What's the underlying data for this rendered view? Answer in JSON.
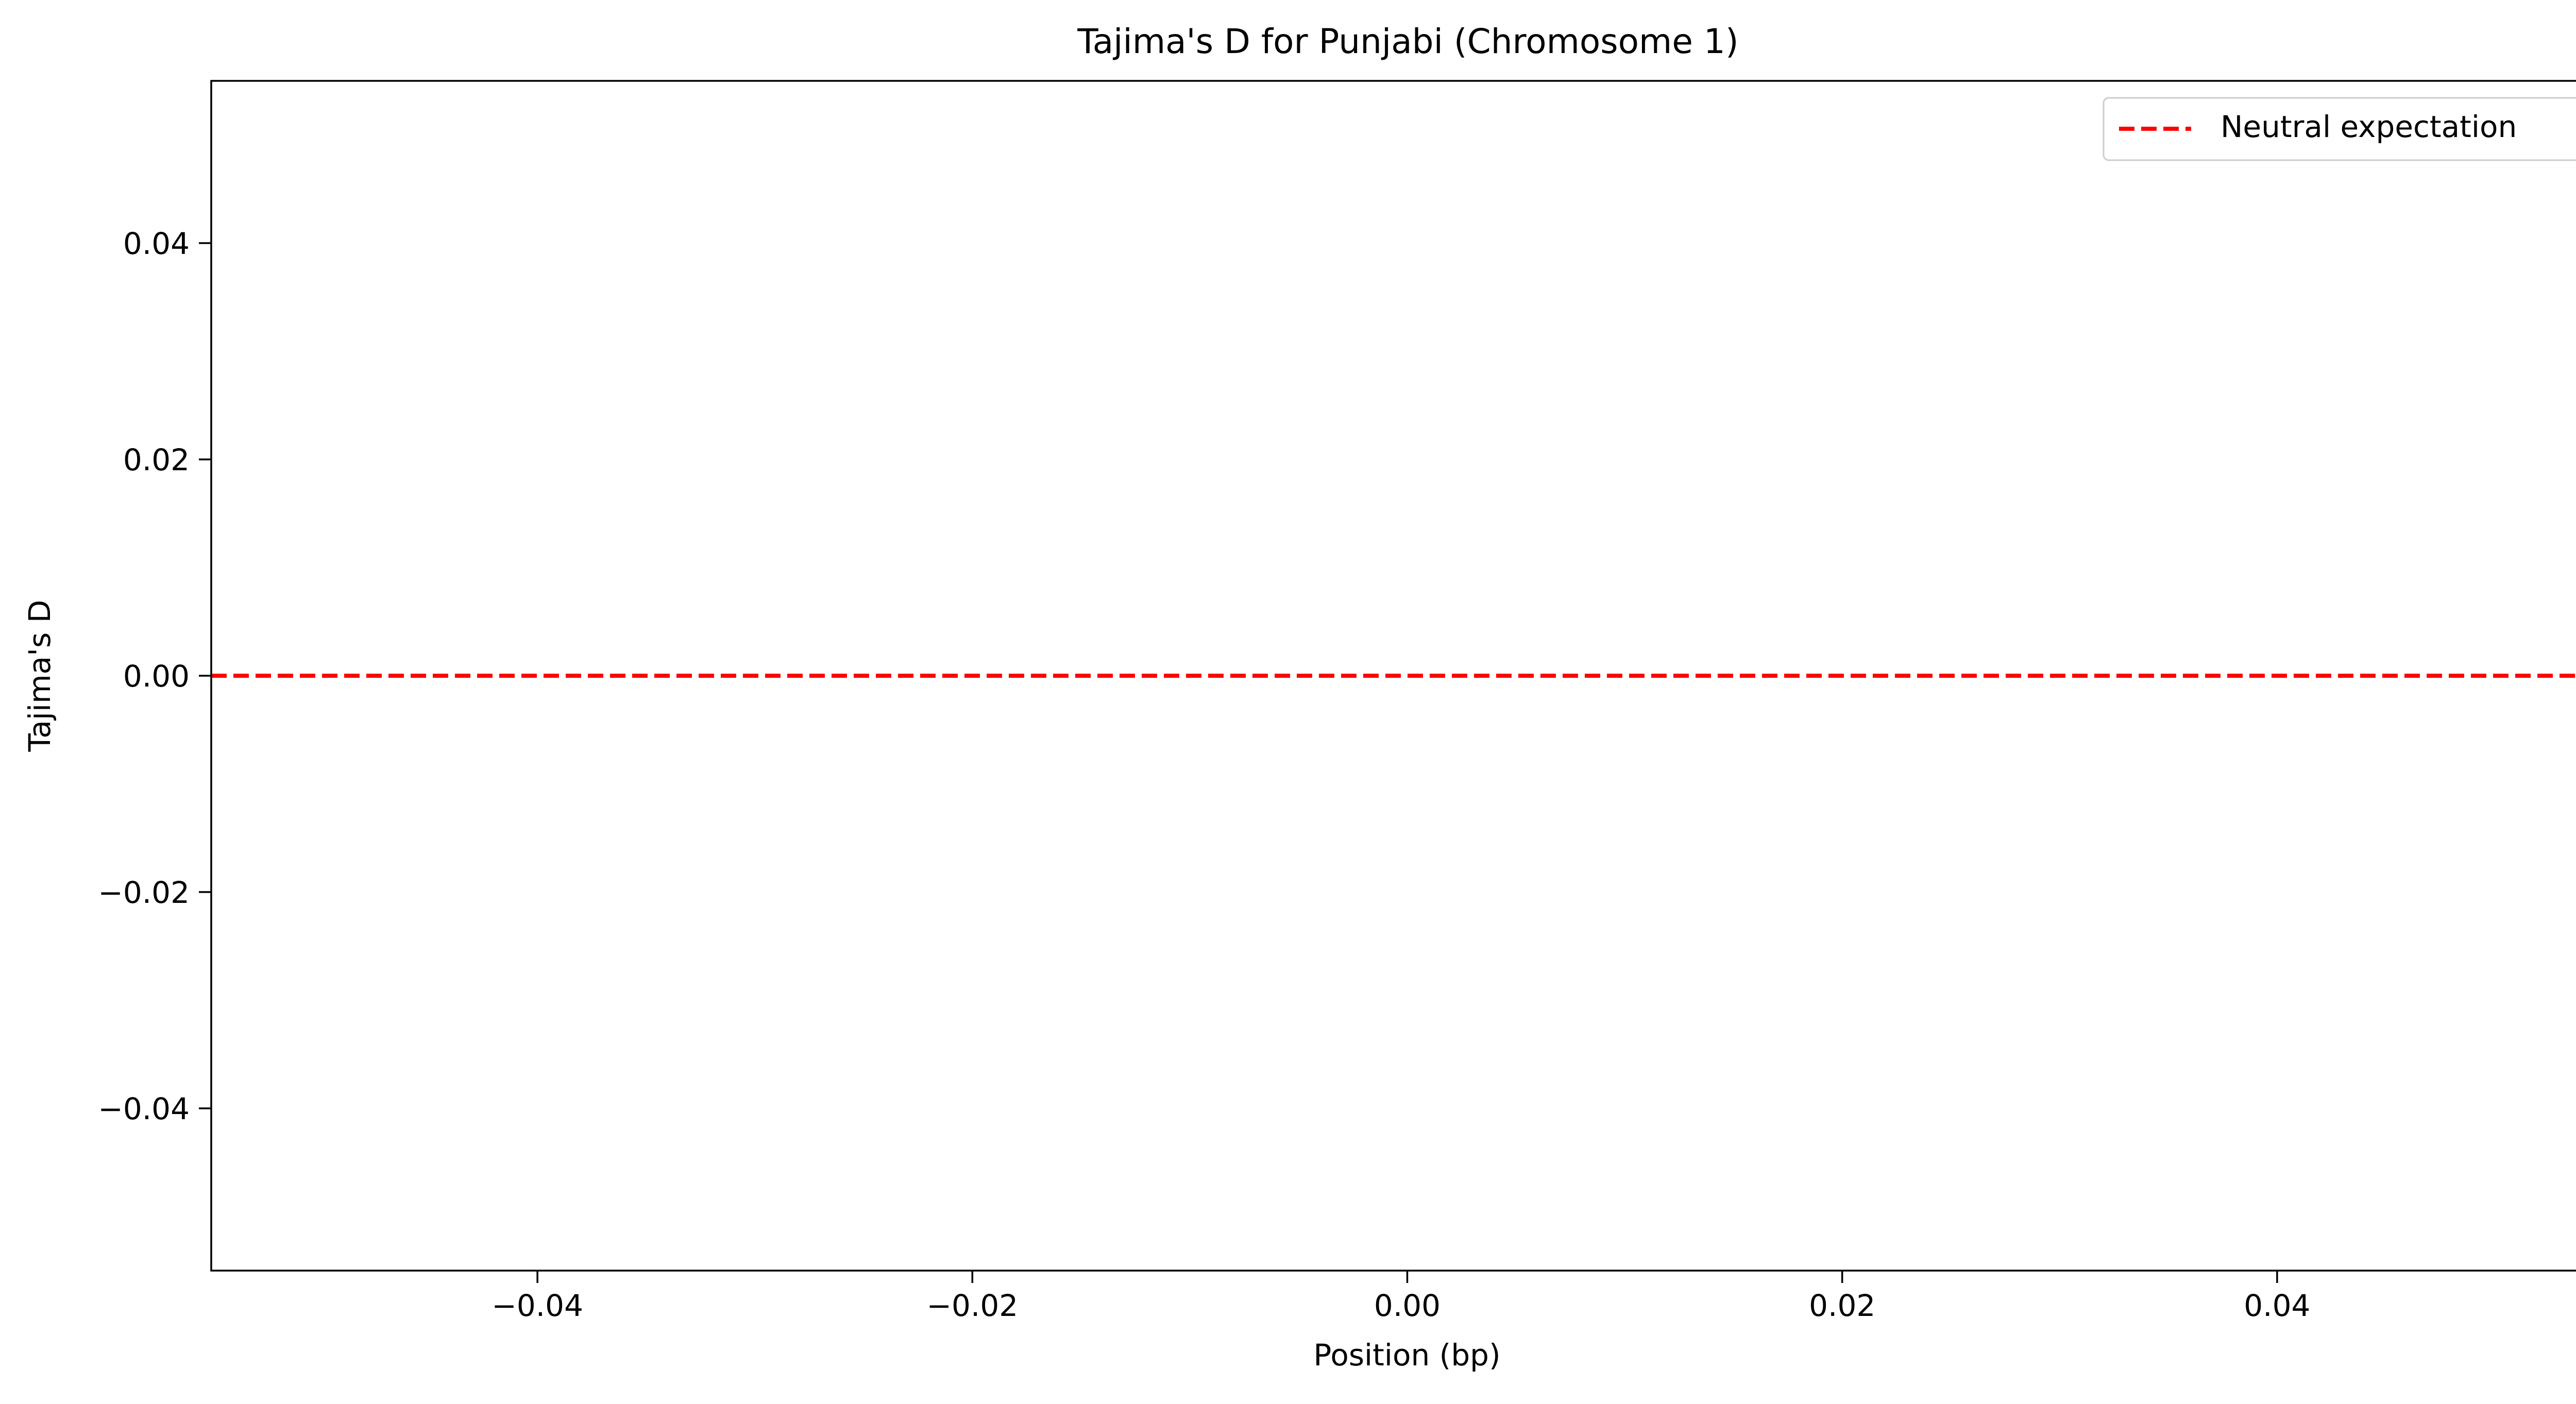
{
  "chart_data": {
    "type": "line",
    "title": "Tajima's D for Punjabi (Chromosome 1)",
    "xlabel": "Position (bp)",
    "ylabel": "Tajima's D",
    "xlim": [
      -0.055,
      0.055
    ],
    "ylim": [
      -0.055,
      0.055
    ],
    "x_ticks": [
      {
        "value": -0.04,
        "label": "−0.04"
      },
      {
        "value": -0.02,
        "label": "−0.02"
      },
      {
        "value": 0.0,
        "label": "0.00"
      },
      {
        "value": 0.02,
        "label": "0.02"
      },
      {
        "value": 0.04,
        "label": "0.04"
      }
    ],
    "y_ticks": [
      {
        "value": 0.04,
        "label": "0.04"
      },
      {
        "value": 0.02,
        "label": "0.02"
      },
      {
        "value": 0.0,
        "label": "0.00"
      },
      {
        "value": -0.02,
        "label": "−0.02"
      },
      {
        "value": -0.04,
        "label": "−0.04"
      }
    ],
    "grid": false,
    "series": [],
    "reference_lines": [
      {
        "orientation": "horizontal",
        "y": 0.0,
        "style": "dashed",
        "color": "#ff0000",
        "label": "Neutral expectation"
      }
    ],
    "legend": {
      "position": "top-right",
      "entries": [
        {
          "label": "Neutral expectation",
          "color": "#ff0000",
          "style": "dashed"
        }
      ]
    }
  }
}
